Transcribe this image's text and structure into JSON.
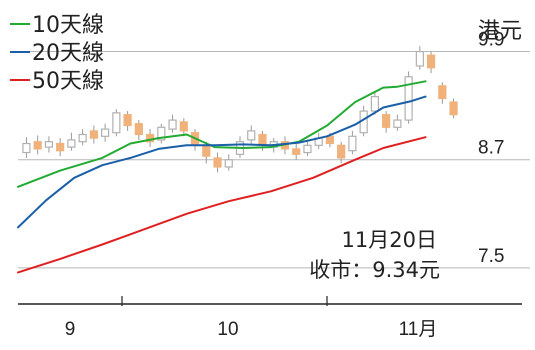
{
  "chart_data": {
    "type": "line",
    "unit_label": "港元",
    "legend": [
      {
        "label": "10天線",
        "color": "#22aa33"
      },
      {
        "label": "20天線",
        "color": "#1a5fa8"
      },
      {
        "label": "50天線",
        "color": "#e02020"
      }
    ],
    "y_ticks": [
      "9.9",
      "8.7",
      "7.5"
    ],
    "y_tick_values": [
      9.9,
      8.7,
      7.5
    ],
    "ylim": [
      7.1,
      10.25
    ],
    "x_ticks": [
      "9",
      "10",
      "11月"
    ],
    "x_tick_positions": [
      0.0,
      0.48,
      0.97
    ],
    "xlim": [
      -0.25,
      1.33
    ],
    "annotation": {
      "date": "11月20日",
      "close": "收市：9.34元"
    },
    "series": [
      {
        "name": "10天線",
        "color": "#22aa33",
        "x": [
          -0.25,
          -0.1,
          0.05,
          0.15,
          0.25,
          0.35,
          0.45,
          0.55,
          0.65,
          0.75,
          0.85,
          0.95,
          1.05,
          1.1,
          1.2
        ],
        "values": [
          8.4,
          8.58,
          8.72,
          8.88,
          8.94,
          8.98,
          8.84,
          8.83,
          8.84,
          8.9,
          9.08,
          9.34,
          9.5,
          9.51,
          9.57
        ]
      },
      {
        "name": "20天線",
        "color": "#1a5fa8",
        "x": [
          -0.25,
          -0.15,
          -0.05,
          0.05,
          0.15,
          0.25,
          0.35,
          0.45,
          0.55,
          0.65,
          0.75,
          0.85,
          0.95,
          1.05,
          1.15,
          1.2
        ],
        "values": [
          7.95,
          8.25,
          8.5,
          8.64,
          8.72,
          8.82,
          8.86,
          8.86,
          8.87,
          8.86,
          8.89,
          8.96,
          9.09,
          9.28,
          9.35,
          9.4
        ]
      },
      {
        "name": "50天線",
        "color": "#e02020",
        "x": [
          -0.25,
          -0.1,
          0.05,
          0.2,
          0.35,
          0.5,
          0.65,
          0.8,
          0.95,
          1.05,
          1.2
        ],
        "values": [
          7.45,
          7.6,
          7.76,
          7.93,
          8.1,
          8.24,
          8.35,
          8.5,
          8.7,
          8.83,
          8.95
        ]
      }
    ],
    "candles": [
      {
        "x": -0.22,
        "o": 8.78,
        "c": 8.88,
        "h": 8.95,
        "l": 8.72
      },
      {
        "x": -0.18,
        "o": 8.9,
        "c": 8.82,
        "h": 8.97,
        "l": 8.76
      },
      {
        "x": -0.14,
        "o": 8.84,
        "c": 8.9,
        "h": 8.96,
        "l": 8.78
      },
      {
        "x": -0.1,
        "o": 8.88,
        "c": 8.8,
        "h": 8.94,
        "l": 8.74
      },
      {
        "x": -0.06,
        "o": 8.84,
        "c": 8.92,
        "h": 9.0,
        "l": 8.8
      },
      {
        "x": -0.02,
        "o": 8.9,
        "c": 8.98,
        "h": 9.04,
        "l": 8.86
      },
      {
        "x": 0.02,
        "o": 9.02,
        "c": 8.94,
        "h": 9.08,
        "l": 8.88
      },
      {
        "x": 0.06,
        "o": 8.96,
        "c": 9.04,
        "h": 9.1,
        "l": 8.9
      },
      {
        "x": 0.1,
        "o": 9.0,
        "c": 9.22,
        "h": 9.26,
        "l": 8.96
      },
      {
        "x": 0.14,
        "o": 9.2,
        "c": 9.08,
        "h": 9.24,
        "l": 9.02
      },
      {
        "x": 0.18,
        "o": 9.1,
        "c": 8.98,
        "h": 9.14,
        "l": 8.92
      },
      {
        "x": 0.22,
        "o": 8.98,
        "c": 8.9,
        "h": 9.04,
        "l": 8.84
      },
      {
        "x": 0.26,
        "o": 8.92,
        "c": 9.06,
        "h": 9.1,
        "l": 8.88
      },
      {
        "x": 0.3,
        "o": 9.04,
        "c": 9.14,
        "h": 9.2,
        "l": 9.0
      },
      {
        "x": 0.34,
        "o": 9.12,
        "c": 9.02,
        "h": 9.16,
        "l": 8.96
      },
      {
        "x": 0.38,
        "o": 9.0,
        "c": 8.86,
        "h": 9.04,
        "l": 8.8
      },
      {
        "x": 0.42,
        "o": 8.86,
        "c": 8.74,
        "h": 8.9,
        "l": 8.66
      },
      {
        "x": 0.46,
        "o": 8.72,
        "c": 8.62,
        "h": 8.78,
        "l": 8.56
      },
      {
        "x": 0.5,
        "o": 8.62,
        "c": 8.7,
        "h": 8.76,
        "l": 8.58
      },
      {
        "x": 0.54,
        "o": 8.76,
        "c": 8.9,
        "h": 8.96,
        "l": 8.72
      },
      {
        "x": 0.58,
        "o": 8.92,
        "c": 9.02,
        "h": 9.08,
        "l": 8.88
      },
      {
        "x": 0.62,
        "o": 8.98,
        "c": 8.86,
        "h": 9.02,
        "l": 8.8
      },
      {
        "x": 0.66,
        "o": 8.84,
        "c": 8.9,
        "h": 8.94,
        "l": 8.78
      },
      {
        "x": 0.7,
        "o": 8.9,
        "c": 8.82,
        "h": 8.96,
        "l": 8.76
      },
      {
        "x": 0.74,
        "o": 8.82,
        "c": 8.76,
        "h": 8.88,
        "l": 8.7
      },
      {
        "x": 0.78,
        "o": 8.78,
        "c": 8.86,
        "h": 8.92,
        "l": 8.74
      },
      {
        "x": 0.82,
        "o": 8.86,
        "c": 8.94,
        "h": 9.0,
        "l": 8.82
      },
      {
        "x": 0.86,
        "o": 8.96,
        "c": 8.88,
        "h": 9.0,
        "l": 8.84
      },
      {
        "x": 0.9,
        "o": 8.86,
        "c": 8.72,
        "h": 8.9,
        "l": 8.66
      },
      {
        "x": 0.94,
        "o": 8.8,
        "c": 8.96,
        "h": 9.02,
        "l": 8.76
      },
      {
        "x": 0.98,
        "o": 9.0,
        "c": 9.24,
        "h": 9.3,
        "l": 8.96
      },
      {
        "x": 1.02,
        "o": 9.24,
        "c": 9.4,
        "h": 9.46,
        "l": 9.2
      },
      {
        "x": 1.06,
        "o": 9.2,
        "c": 9.06,
        "h": 9.24,
        "l": 9.0
      },
      {
        "x": 1.1,
        "o": 9.06,
        "c": 9.14,
        "h": 9.2,
        "l": 9.02
      },
      {
        "x": 1.14,
        "o": 9.14,
        "c": 9.62,
        "h": 9.68,
        "l": 9.1
      },
      {
        "x": 1.18,
        "o": 9.74,
        "c": 9.9,
        "h": 9.96,
        "l": 9.7
      },
      {
        "x": 1.22,
        "o": 9.86,
        "c": 9.72,
        "h": 9.9,
        "l": 9.66
      },
      {
        "x": 1.26,
        "o": 9.52,
        "c": 9.38,
        "h": 9.56,
        "l": 9.32
      },
      {
        "x": 1.3,
        "o": 9.34,
        "c": 9.2,
        "h": 9.38,
        "l": 9.16
      },
      {
        "x": 1.34,
        "o": 9.22,
        "c": 9.3,
        "h": 9.36,
        "l": 9.18
      },
      {
        "x": 1.38,
        "o": 9.3,
        "c": 9.36,
        "h": 9.4,
        "l": 9.26
      },
      {
        "x": 1.42,
        "o": 9.38,
        "c": 9.3,
        "h": 9.42,
        "l": 9.24
      },
      {
        "x": 1.46,
        "o": 9.32,
        "c": 9.34,
        "h": 9.4,
        "l": 9.28
      }
    ]
  }
}
